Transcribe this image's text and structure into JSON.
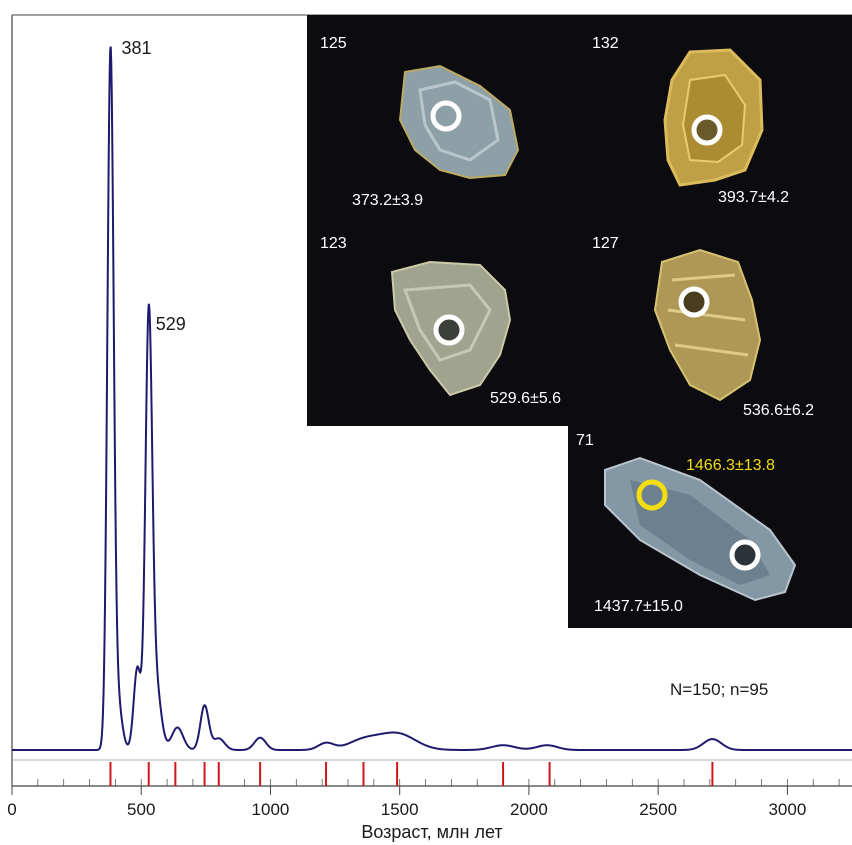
{
  "chart_data": {
    "type": "line",
    "xlabel": "Возраст, млн лет",
    "xlim": [
      0,
      3250
    ],
    "x_ticks": [
      "0",
      "500",
      "1000",
      "1500",
      "2000",
      "2500",
      "3000"
    ],
    "x_tick_values": [
      0,
      500,
      1000,
      1500,
      2000,
      2500,
      3000
    ],
    "minor_tick_step": 100,
    "grid": false,
    "series": [
      {
        "color": "#1f1a6e",
        "components": [
          {
            "mu": 381,
            "sigma": 12,
            "amp": 1.0
          },
          {
            "mu": 405,
            "sigma": 18,
            "amp": 0.08
          },
          {
            "mu": 485,
            "sigma": 14,
            "amp": 0.12
          },
          {
            "mu": 529,
            "sigma": 13,
            "amp": 0.61
          },
          {
            "mu": 555,
            "sigma": 20,
            "amp": 0.1
          },
          {
            "mu": 640,
            "sigma": 22,
            "amp": 0.033
          },
          {
            "mu": 745,
            "sigma": 16,
            "amp": 0.065
          },
          {
            "mu": 800,
            "sigma": 22,
            "amp": 0.017
          },
          {
            "mu": 960,
            "sigma": 22,
            "amp": 0.018
          },
          {
            "mu": 1215,
            "sigma": 30,
            "amp": 0.01
          },
          {
            "mu": 1360,
            "sigma": 60,
            "amp": 0.014
          },
          {
            "mu": 1490,
            "sigma": 70,
            "amp": 0.024
          },
          {
            "mu": 1900,
            "sigma": 45,
            "amp": 0.007
          },
          {
            "mu": 2070,
            "sigma": 40,
            "amp": 0.007
          },
          {
            "mu": 2710,
            "sigma": 35,
            "amp": 0.016
          }
        ]
      }
    ],
    "peak_labels": [
      {
        "x": 381,
        "label": "381"
      },
      {
        "x": 529,
        "label": "529"
      }
    ],
    "red_markers": [
      381,
      529,
      632,
      745,
      800,
      960,
      1215,
      1360,
      1490,
      1900,
      2080,
      2710
    ],
    "annotation": "N=150; n=95"
  },
  "inset": {
    "panels": [
      {
        "id": "125",
        "age": "373.2±3.9"
      },
      {
        "id": "132",
        "age": "393.7±4.2"
      },
      {
        "id": "123",
        "age": "529.6±5.6"
      },
      {
        "id": "127",
        "age": "536.6±6.2"
      },
      {
        "id": "71",
        "age": "1437.7±15.0",
        "age2": "1466.3±13.8"
      }
    ],
    "colors": {
      "background": "#0b0b10",
      "marker": "#ffffff",
      "highlight": "#f2de12"
    }
  }
}
